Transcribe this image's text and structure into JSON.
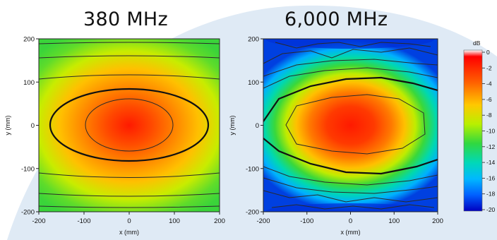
{
  "panels": [
    {
      "title": "380 MHz"
    },
    {
      "title": "6,000 MHz"
    }
  ],
  "colors": {
    "background_arc": "#dfeaf5"
  },
  "chart_data": [
    {
      "type": "heatmap",
      "title": "380 MHz",
      "xlabel": "x (mm)",
      "ylabel": "y (mm)",
      "xlim": [
        -200,
        200
      ],
      "ylim": [
        -200,
        200
      ],
      "xticks": [
        -200,
        -100,
        0,
        100,
        200
      ],
      "yticks": [
        -200,
        -100,
        0,
        100,
        200
      ],
      "value_unit": "dB",
      "peak": {
        "x": 0,
        "y": 0,
        "value": 0
      },
      "contour_levels_db": [
        -2,
        -4,
        -6,
        -8,
        -10,
        -12
      ],
      "emphasized_contour_db": -6
    },
    {
      "type": "heatmap",
      "title": "6,000 MHz",
      "xlabel": "x (mm)",
      "ylabel": "y (mm)",
      "xlim": [
        -200,
        200
      ],
      "ylim": [
        -200,
        200
      ],
      "xticks": [
        -200,
        -100,
        0,
        100,
        200
      ],
      "yticks": [
        -200,
        -100,
        0,
        100,
        200
      ],
      "value_unit": "dB",
      "peak": {
        "x": 0,
        "y": 0,
        "value": 0
      },
      "contour_levels_db": [
        -2,
        -4,
        -6,
        -8,
        -10,
        -12,
        -14,
        -16,
        -18,
        -20
      ],
      "emphasized_contour_db": -6
    }
  ],
  "colorbar": {
    "label": "dB",
    "ticks": [
      "0",
      "-2",
      "-4",
      "-6",
      "-8",
      "-10",
      "-12",
      "-14",
      "-16",
      "-18",
      "-20"
    ],
    "range": [
      -20,
      0
    ],
    "colors": [
      "#ffffff",
      "#ff0000",
      "#ff7a00",
      "#ffd000",
      "#c8f000",
      "#3ad83a",
      "#00d8b0",
      "#00b8ff",
      "#0060ff",
      "#0000c8"
    ]
  }
}
